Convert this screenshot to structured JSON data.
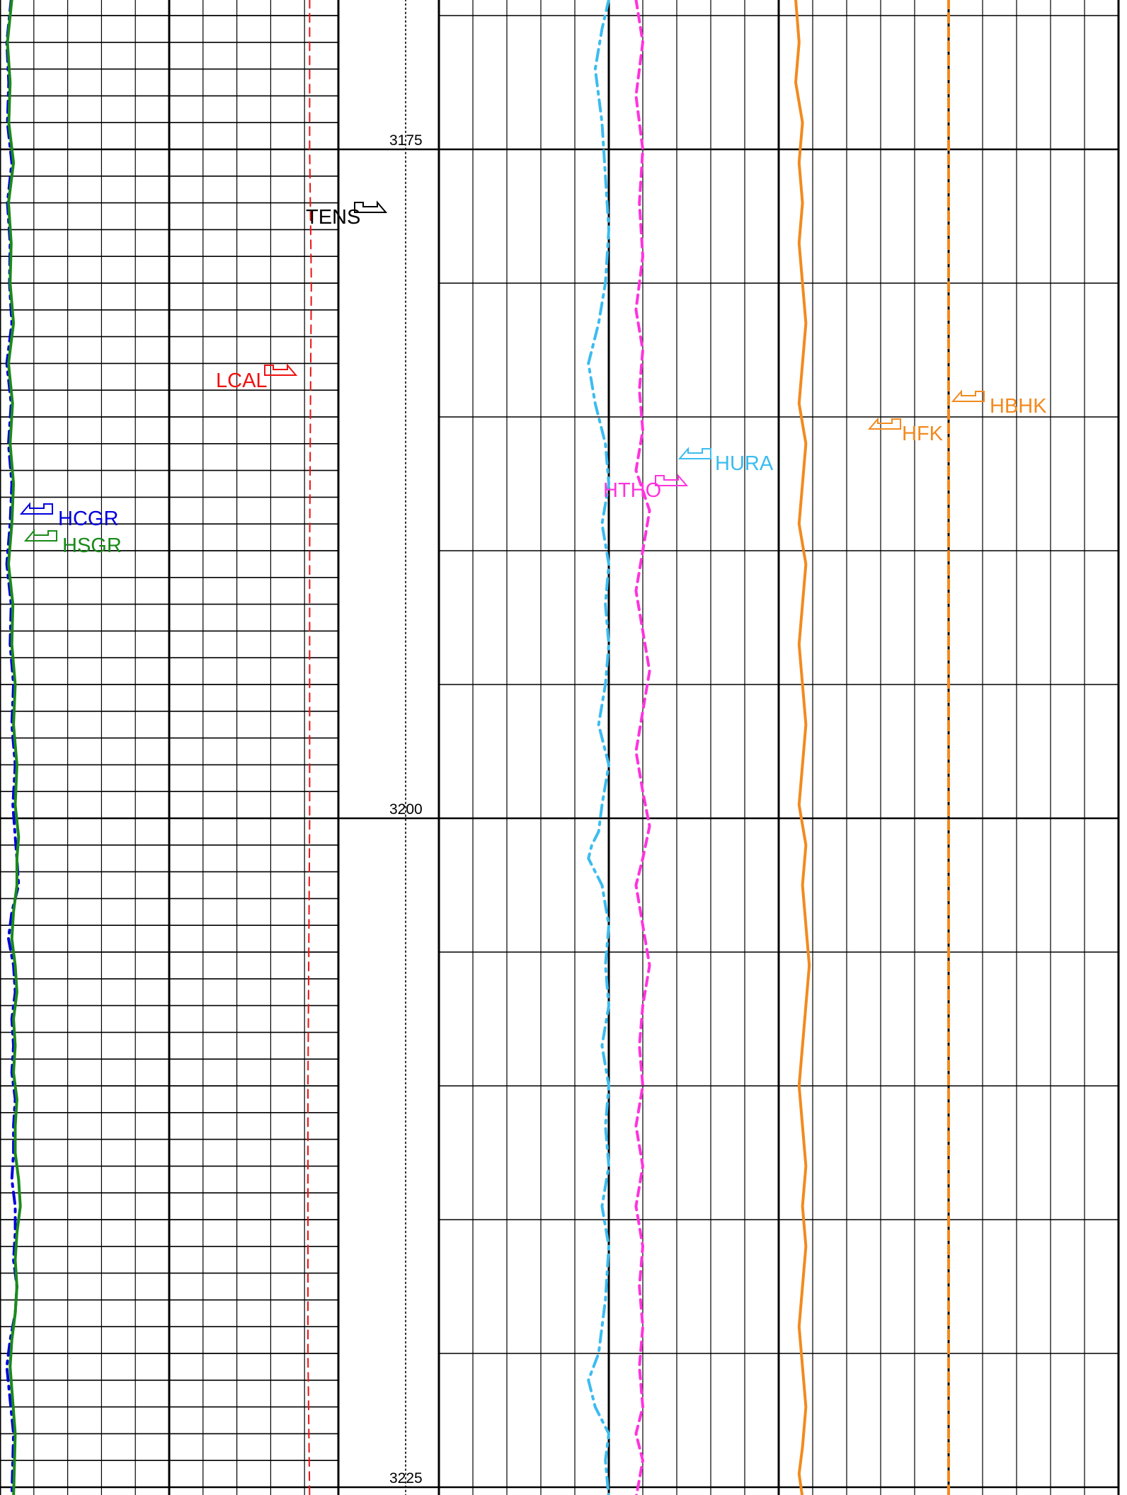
{
  "chart_data": {
    "type": "line",
    "title": "",
    "depth_axis": {
      "ticks": [
        3175,
        3200,
        3225
      ],
      "range": [
        3169.4,
        3225.4
      ]
    },
    "curve_labels": [
      {
        "text": "HCGR",
        "color": "#0000dd",
        "icon": "curve-flag-icon"
      },
      {
        "text": "HSGR",
        "color": "#1a8a1a",
        "icon": "curve-flag-icon"
      },
      {
        "text": "LCAL",
        "color": "#ee1111",
        "icon": "curve-flag-icon"
      },
      {
        "text": "TENS",
        "color": "#000000",
        "icon": "curve-flag-icon"
      },
      {
        "text": "HURA",
        "color": "#3bbcf0",
        "icon": "curve-flag-icon"
      },
      {
        "text": "HTHO",
        "color": "#ff33dd",
        "icon": "curve-flag-icon"
      },
      {
        "text": "HFK",
        "color": "#f28a1e",
        "icon": "curve-flag-icon"
      },
      {
        "text": "HBHK",
        "color": "#f28a1e",
        "icon": "curve-flag-icon"
      }
    ],
    "tracks": [
      {
        "name": "track-1",
        "divisions": 10,
        "major_every": 5,
        "subgrid_depth_m": 1
      },
      {
        "name": "track-2",
        "divisions": 10,
        "major_every": 5,
        "subgrid_depth_m": 5
      },
      {
        "name": "track-3",
        "divisions": 10,
        "major_every": 5,
        "subgrid_depth_m": 5
      }
    ],
    "series": [
      {
        "name": "HCGR",
        "style": "dash-dot",
        "color": "#0000dd",
        "x": [
          0.033,
          0.02,
          0.026,
          0.022,
          0.035,
          0.022,
          0.03,
          0.028,
          0.035,
          0.02,
          0.033,
          0.025,
          0.035,
          0.03,
          0.02,
          0.033,
          0.03,
          0.04,
          0.035,
          0.045,
          0.038,
          0.045,
          0.05,
          0.055,
          0.035,
          0.025,
          0.04,
          0.045,
          0.035,
          0.04,
          0.035,
          0.045,
          0.04,
          0.04,
          0.035,
          0.045,
          0.045,
          0.04,
          0.05,
          0.045,
          0.03,
          0.02,
          0.04,
          0.035
        ],
        "depth": [
          3169.4,
          3171,
          3172.5,
          3174,
          3175.5,
          3177,
          3178.5,
          3180,
          3181.5,
          3183,
          3184.5,
          3186,
          3187.5,
          3189,
          3190.5,
          3192,
          3193.5,
          3195,
          3196.5,
          3198,
          3199.5,
          3200.7,
          3201.5,
          3202.5,
          3203.5,
          3204.5,
          3205.5,
          3206.5,
          3207.5,
          3208.5,
          3209.5,
          3210.5,
          3211.5,
          3212.5,
          3213.5,
          3214.5,
          3215.5,
          3216.5,
          3217.5,
          3218.5,
          3219.5,
          3220.5,
          3223,
          3225.4
        ]
      },
      {
        "name": "HSGR",
        "style": "solid",
        "color": "#1a8a1a",
        "x": [
          0.035,
          0.022,
          0.03,
          0.026,
          0.04,
          0.025,
          0.033,
          0.03,
          0.04,
          0.025,
          0.037,
          0.03,
          0.04,
          0.035,
          0.025,
          0.038,
          0.035,
          0.045,
          0.04,
          0.05,
          0.045,
          0.055,
          0.05,
          0.05,
          0.04,
          0.035,
          0.045,
          0.05,
          0.04,
          0.045,
          0.04,
          0.05,
          0.045,
          0.045,
          0.055,
          0.06,
          0.05,
          0.045,
          0.05,
          0.045,
          0.035,
          0.03,
          0.045,
          0.04
        ],
        "depth": [
          3169.4,
          3171,
          3172.5,
          3174,
          3175.5,
          3177,
          3178.5,
          3180,
          3181.5,
          3183,
          3184.5,
          3186,
          3187.5,
          3189,
          3190.5,
          3192,
          3193.5,
          3195,
          3196.5,
          3198,
          3199.5,
          3200.7,
          3201.5,
          3202.5,
          3203.5,
          3204.5,
          3205.5,
          3206.5,
          3207.5,
          3208.5,
          3209.5,
          3210.5,
          3211.5,
          3212.5,
          3213.5,
          3214.5,
          3215.5,
          3216.5,
          3217.5,
          3218.5,
          3219.5,
          3220.5,
          3223,
          3225.4
        ]
      },
      {
        "name": "LCAL",
        "style": "dashed",
        "color": "#ee1111",
        "x": [
          0.915,
          0.915,
          0.92,
          0.918,
          0.915,
          0.915,
          0.91,
          0.91,
          0.915
        ],
        "depth": [
          3169.4,
          3175,
          3180,
          3183.5,
          3190,
          3200,
          3210,
          3220,
          3225.4
        ]
      },
      {
        "name": "TENS",
        "style": "dotted",
        "color": "#000000",
        "x": [
          0.98,
          0.985,
          0.99,
          0.985,
          0.98,
          0.985,
          0.99,
          0.985,
          0.985
        ],
        "depth": [
          3169.4,
          3175,
          3180,
          3185,
          3190,
          3200,
          3210,
          3220,
          3225.4
        ]
      },
      {
        "name": "HURA",
        "style": "dash-dot",
        "color": "#3bbcf0",
        "x": [
          0.5,
          0.48,
          0.46,
          0.48,
          0.49,
          0.5,
          0.49,
          0.47,
          0.44,
          0.46,
          0.49,
          0.5,
          0.48,
          0.5,
          0.49,
          0.5,
          0.49,
          0.47,
          0.5,
          0.48,
          0.47,
          0.45,
          0.44,
          0.48,
          0.5,
          0.49,
          0.5,
          0.48,
          0.5,
          0.49,
          0.5,
          0.48,
          0.5,
          0.49,
          0.47,
          0.44,
          0.46,
          0.5,
          0.49,
          0.5
        ],
        "depth": [
          3169.4,
          3170.5,
          3172,
          3174,
          3176,
          3178,
          3180,
          3181.5,
          3183,
          3184.5,
          3186,
          3187.5,
          3189,
          3190.5,
          3192,
          3193.5,
          3195,
          3196.5,
          3198,
          3199.5,
          3200.5,
          3201,
          3201.5,
          3202.5,
          3204,
          3205.5,
          3207,
          3208.5,
          3210,
          3211.5,
          3213,
          3214.5,
          3216,
          3218,
          3220,
          3221,
          3222,
          3223,
          3224,
          3225.4
        ]
      },
      {
        "name": "HTHO",
        "style": "dashed",
        "color": "#ff33dd",
        "x": [
          0.58,
          0.6,
          0.58,
          0.6,
          0.59,
          0.6,
          0.58,
          0.6,
          0.59,
          0.6,
          0.58,
          0.62,
          0.6,
          0.58,
          0.6,
          0.62,
          0.6,
          0.58,
          0.6,
          0.62,
          0.6,
          0.58,
          0.6,
          0.62,
          0.6,
          0.59,
          0.6,
          0.58,
          0.6,
          0.58,
          0.6,
          0.59,
          0.6,
          0.59,
          0.6,
          0.58,
          0.6,
          0.59,
          0.58
        ],
        "depth": [
          3169.4,
          3171,
          3173,
          3175,
          3177,
          3179,
          3181,
          3182.5,
          3184,
          3185.5,
          3187,
          3188.5,
          3190,
          3191.5,
          3193,
          3194.5,
          3196,
          3197.5,
          3199,
          3200.3,
          3201.5,
          3202.5,
          3204,
          3205.5,
          3207,
          3208.5,
          3210,
          3211.5,
          3213,
          3214.5,
          3216,
          3217.5,
          3219,
          3220.5,
          3222,
          3223,
          3224,
          3224.7,
          3225.4
        ]
      },
      {
        "name": "HFK",
        "style": "solid",
        "color": "#f28a1e",
        "x": [
          0.05,
          0.06,
          0.05,
          0.07,
          0.06,
          0.07,
          0.06,
          0.07,
          0.08,
          0.07,
          0.06,
          0.08,
          0.07,
          0.06,
          0.08,
          0.07,
          0.06,
          0.07,
          0.08,
          0.07,
          0.06,
          0.08,
          0.07,
          0.08,
          0.09,
          0.08,
          0.07,
          0.06,
          0.07,
          0.08,
          0.07,
          0.08,
          0.07,
          0.06,
          0.07,
          0.08,
          0.07,
          0.06,
          0.07
        ],
        "depth": [
          3169.4,
          3171,
          3172.5,
          3174,
          3175.5,
          3177,
          3178.5,
          3180,
          3181.5,
          3183,
          3184.5,
          3186,
          3187.5,
          3189,
          3190.5,
          3192,
          3193.5,
          3195,
          3196.5,
          3198,
          3199.5,
          3201,
          3202.5,
          3204,
          3205.5,
          3207,
          3208.5,
          3210,
          3211.5,
          3213,
          3214.5,
          3216,
          3217.5,
          3219,
          3220.5,
          3222,
          3223.5,
          3224.5,
          3225.4
        ]
      },
      {
        "name": "HBHK",
        "style": "dashed",
        "color": "#f28a1e",
        "x": [
          0.5,
          0.5,
          0.5,
          0.5,
          0.5
        ],
        "depth": [
          3169.4,
          3180,
          3190,
          3210,
          3225.4
        ]
      }
    ]
  }
}
